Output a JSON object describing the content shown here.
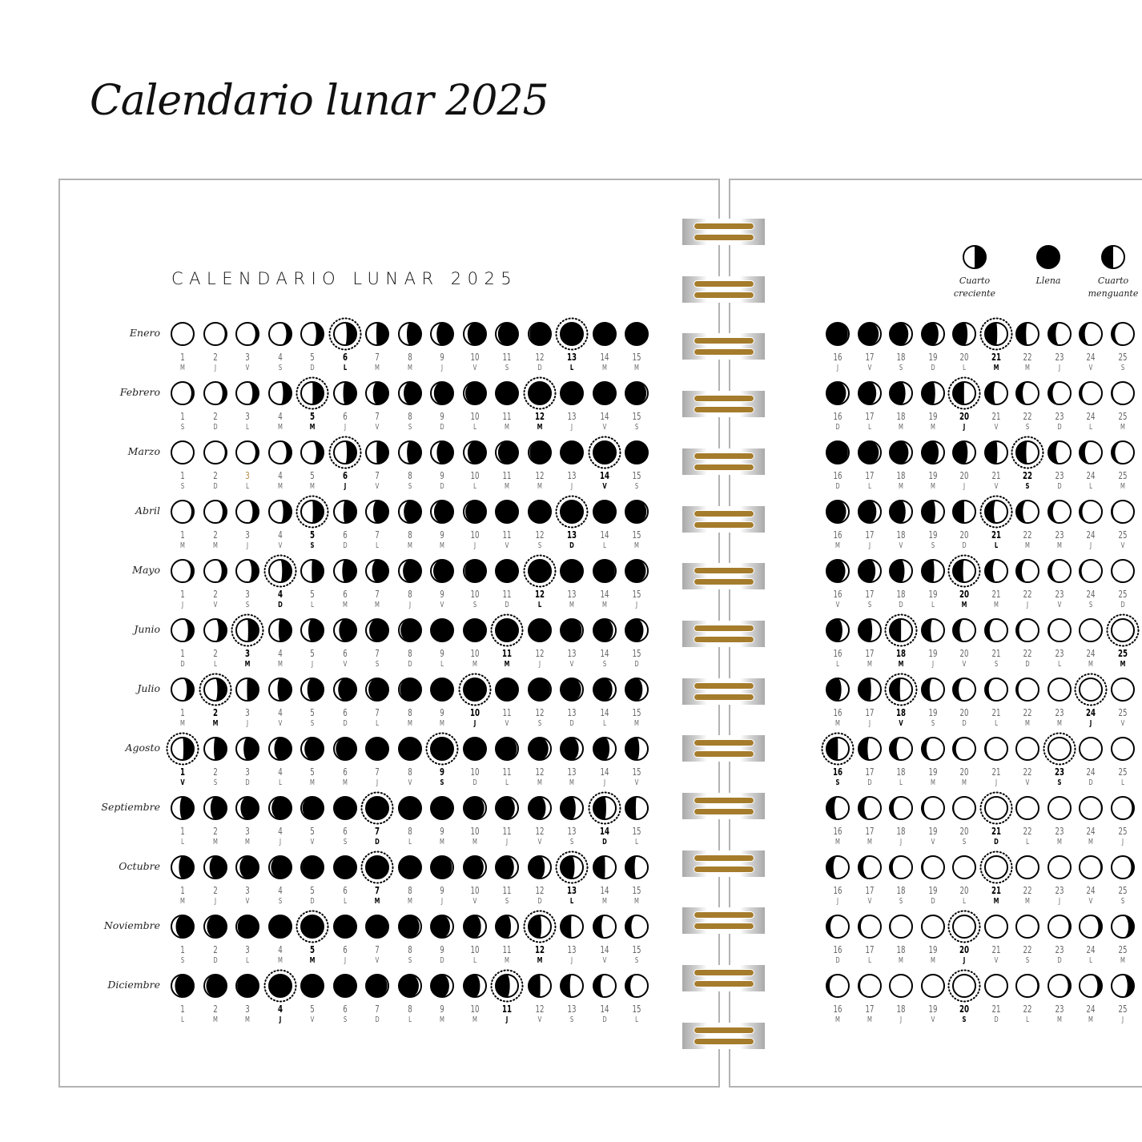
{
  "title": "Calendario lunar 2025",
  "page_heading": "CALENDARIO LUNAR 2025",
  "colors": {
    "ink": "#000000",
    "ring_gold": "#a57c2c",
    "accent_number": "#b08a4a"
  },
  "legend": [
    {
      "label": "Cuarto creciente",
      "phase": "first-quarter"
    },
    {
      "label": "Llena",
      "phase": "full"
    },
    {
      "label": "Cuarto menguante",
      "phase": "last-quarter"
    }
  ],
  "day_numbers": [
    1,
    2,
    3,
    4,
    5,
    6,
    7,
    8,
    9,
    10,
    11,
    12,
    13,
    14,
    15,
    16,
    17,
    18,
    19,
    20,
    21,
    22,
    23,
    24,
    25
  ],
  "months": [
    {
      "name": "Enero",
      "weekdays": "MJVSDLMMJVSDLMMJVSDLMMJVS",
      "key_days": [
        6,
        13,
        21
      ]
    },
    {
      "name": "Febrero",
      "weekdays": "SDLMMJVSDLMMJVSDLMMJVSDLM",
      "key_days": [
        5,
        12,
        20
      ]
    },
    {
      "name": "Marzo",
      "weekdays": "SDLMMJVSDLMMJVSDLMMJVSDLM",
      "key_days": [
        6,
        14,
        22
      ],
      "accent_day": 3
    },
    {
      "name": "Abril",
      "weekdays": "MMJVSDLMMJVSDLMMJVSDLMMJV",
      "key_days": [
        5,
        13,
        21
      ]
    },
    {
      "name": "Mayo",
      "weekdays": "JVSDLMMJVSDLMMJVSDLMMJVSD",
      "key_days": [
        4,
        12,
        20
      ]
    },
    {
      "name": "Junio",
      "weekdays": "DLMMJVSDLMMJVSDLMMJVSDLMM",
      "key_days": [
        3,
        11,
        18,
        25
      ]
    },
    {
      "name": "Julio",
      "weekdays": "MMJVSDLMMJVSDLMMJVSDLMMJV",
      "key_days": [
        2,
        10,
        18,
        24
      ]
    },
    {
      "name": "Agosto",
      "weekdays": "VSDLMMJVSDLMMJVSDLMMJVSDL",
      "key_days": [
        1,
        9,
        16,
        23
      ]
    },
    {
      "name": "Septiembre",
      "weekdays": "LMMJVSDLMMJVSDLMMJVSDLMMJ",
      "key_days": [
        7,
        14,
        21
      ]
    },
    {
      "name": "Octubre",
      "weekdays": "MJVSDLMMJVSDLMMJVSDLMMJVS",
      "key_days": [
        7,
        13,
        21
      ]
    },
    {
      "name": "Noviembre",
      "weekdays": "SDLMMJVSDLMMJVSDLMMJVSDLM",
      "key_days": [
        5,
        12,
        20
      ]
    },
    {
      "name": "Diciembre",
      "weekdays": "LMMJVSDLMMJVSDLMMJVSDLMMJ",
      "key_days": [
        4,
        11,
        20
      ]
    }
  ],
  "year": 2025
}
